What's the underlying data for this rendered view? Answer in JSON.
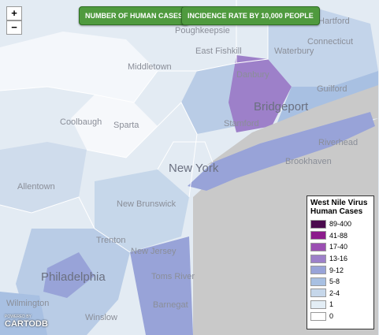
{
  "map": {
    "buttons": [
      "NUMBER OF HUMAN CASES",
      "INCIDENCE RATE BY 10,000 PEOPLE"
    ],
    "zoom": [
      "+",
      "−"
    ],
    "places": [
      "Hartford",
      "Poughkeepsie",
      "East Fishkill",
      "Waterbury",
      "Connecticut",
      "Middletown",
      "Danbury",
      "Guilford",
      "Bridgeport",
      "Stamford",
      "Riverhead",
      "Brookhaven",
      "Coolbaugh",
      "Sparta",
      "New York",
      "Allentown",
      "New Brunswick",
      "Trenton",
      "New Jersey",
      "Philadelphia",
      "Toms River",
      "Barnegat",
      "Wilmington",
      "Winslow"
    ],
    "legend": {
      "title": "West Nile Virus Human Cases",
      "items": [
        {
          "label": "89-400",
          "color": "#4b0b4e"
        },
        {
          "label": "41-88",
          "color": "#8c1c8c"
        },
        {
          "label": "17-40",
          "color": "#9b4fb2"
        },
        {
          "label": "13-16",
          "color": "#9d80c9"
        },
        {
          "label": "9-12",
          "color": "#98a3d8"
        },
        {
          "label": "5-8",
          "color": "#a8c0e2"
        },
        {
          "label": "2-4",
          "color": "#c6d7ea"
        },
        {
          "label": "1",
          "color": "#e3edf5"
        },
        {
          "label": "0",
          "color": "#ffffff"
        }
      ]
    },
    "attribution": {
      "powered": "POWERED BY",
      "logo": "CARTODB"
    }
  }
}
